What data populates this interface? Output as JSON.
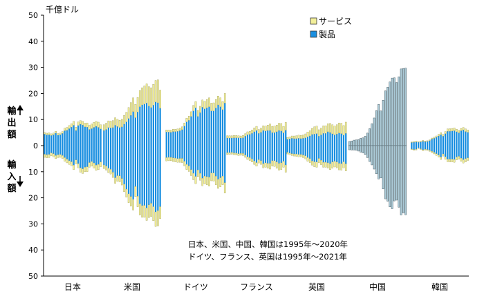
{
  "chart_data": {
    "type": "bar",
    "unit_label": "千億ドル",
    "y_ticks": [
      "50",
      "40",
      "30",
      "20",
      "10",
      "0",
      "10",
      "20",
      "30",
      "40",
      "50"
    ],
    "ylim": [
      -50,
      50
    ],
    "export_label": "輸出額",
    "import_label": "輸入額",
    "legend": {
      "services": "サービス",
      "goods": "製品"
    },
    "legend_position": "top-right",
    "grid": false,
    "note_lines": [
      "日本、米国、中国、韓国は1995年～2020年",
      "ドイツ、フランス、英国は1995年～2021年"
    ],
    "colors": {
      "goods": "#1a8fe0",
      "services": "#f2ef9a",
      "china": "#a9c9d6"
    },
    "countries": [
      {
        "name": "日本",
        "years": "1995-2020",
        "style": "split",
        "exp_goods": [
          4.4,
          4.1,
          4.2,
          3.9,
          4.2,
          4.8,
          4.0,
          4.2,
          4.7,
          5.7,
          5.9,
          6.5,
          7.1,
          7.8,
          5.8,
          7.7,
          8.2,
          7.9,
          7.2,
          7.1,
          6.2,
          6.5,
          7.0,
          7.4,
          7.0,
          6.4
        ],
        "exp_serv": [
          0.65,
          0.68,
          0.7,
          0.62,
          0.6,
          0.69,
          0.64,
          0.65,
          0.71,
          0.97,
          1.1,
          1.2,
          1.3,
          1.5,
          1.3,
          1.4,
          1.4,
          1.4,
          1.4,
          1.6,
          1.6,
          1.8,
          1.9,
          1.9,
          2.0,
          1.6
        ],
        "imp_goods": [
          3.3,
          3.5,
          3.4,
          2.8,
          3.1,
          3.8,
          3.5,
          3.4,
          3.8,
          4.6,
          5.2,
          5.8,
          6.2,
          7.5,
          5.5,
          6.9,
          8.5,
          8.9,
          8.3,
          8.1,
          6.5,
          6.1,
          6.7,
          7.5,
          7.2,
          6.3
        ],
        "imp_serv": [
          1.2,
          1.2,
          1.2,
          1.1,
          1.2,
          1.2,
          1.1,
          1.1,
          1.1,
          1.4,
          1.4,
          1.4,
          1.5,
          1.7,
          1.5,
          1.6,
          1.7,
          1.8,
          1.7,
          1.9,
          1.8,
          1.8,
          1.9,
          2.0,
          2.0,
          1.8
        ]
      },
      {
        "name": "米国",
        "years": "1995-2020",
        "style": "split",
        "exp_goods": [
          5.8,
          6.2,
          6.9,
          6.8,
          6.9,
          7.8,
          7.3,
          6.9,
          7.2,
          8.2,
          9.1,
          10.4,
          11.6,
          13.0,
          10.7,
          12.9,
          14.9,
          15.6,
          15.9,
          16.3,
          15.1,
          14.6,
          15.5,
          16.7,
          16.4,
          14.3
        ],
        "exp_serv": [
          2.2,
          2.4,
          2.6,
          2.6,
          2.7,
          2.9,
          2.8,
          2.8,
          2.9,
          3.4,
          3.7,
          4.2,
          4.9,
          5.3,
          5.1,
          5.6,
          6.2,
          6.6,
          7.0,
          7.4,
          7.5,
          7.6,
          8.0,
          8.3,
          8.8,
          7.0
        ],
        "imp_goods": [
          7.4,
          7.9,
          8.7,
          9.1,
          10.2,
          12.3,
          11.5,
          11.6,
          12.6,
          14.8,
          16.7,
          18.5,
          19.5,
          20.6,
          15.7,
          19.4,
          22.3,
          23.0,
          22.9,
          23.9,
          22.7,
          22.1,
          23.4,
          25.4,
          24.9,
          23.4
        ],
        "imp_serv": [
          1.4,
          1.5,
          1.7,
          1.8,
          2.0,
          2.2,
          2.2,
          2.3,
          2.5,
          2.9,
          3.1,
          3.4,
          3.7,
          4.1,
          3.8,
          4.1,
          4.3,
          4.5,
          4.6,
          4.8,
          4.9,
          5.1,
          5.4,
          5.6,
          5.9,
          4.6
        ]
      },
      {
        "name": "ドイツ",
        "years": "1995-2021",
        "style": "split",
        "exp_goods": [
          5.2,
          5.2,
          5.1,
          5.4,
          5.4,
          5.5,
          5.7,
          6.1,
          7.5,
          9.1,
          9.7,
          11.2,
          13.3,
          14.5,
          11.2,
          12.6,
          14.7,
          14.1,
          14.5,
          14.9,
          13.3,
          13.3,
          14.4,
          15.6,
          14.9,
          13.8,
          16.3
        ],
        "exp_serv": [
          0.8,
          0.8,
          0.8,
          0.9,
          0.9,
          0.9,
          1.0,
          1.1,
          1.2,
          1.4,
          1.6,
          1.8,
          2.1,
          2.4,
          2.3,
          2.5,
          2.8,
          2.9,
          3.2,
          3.4,
          3.0,
          3.1,
          3.3,
          3.4,
          3.4,
          3.1,
          3.7
        ],
        "imp_goods": [
          4.6,
          4.5,
          4.5,
          4.7,
          4.8,
          5.0,
          4.9,
          4.9,
          6.0,
          7.2,
          7.8,
          9.2,
          10.6,
          11.8,
          9.3,
          10.6,
          12.5,
          11.7,
          11.9,
          12.1,
          10.5,
          10.5,
          11.7,
          12.9,
          12.3,
          11.7,
          14.2
        ],
        "imp_serv": [
          1.3,
          1.3,
          1.3,
          1.4,
          1.5,
          1.4,
          1.5,
          1.6,
          1.8,
          2.0,
          2.1,
          2.3,
          2.5,
          2.8,
          2.6,
          2.7,
          2.9,
          3.0,
          3.1,
          3.4,
          3.0,
          3.1,
          3.3,
          3.5,
          3.5,
          3.3,
          4.0
        ]
      },
      {
        "name": "フランス",
        "years": "1995-2021",
        "style": "split",
        "exp_goods": [
          2.9,
          2.9,
          2.9,
          3.0,
          3.0,
          3.0,
          2.9,
          3.0,
          3.6,
          4.2,
          4.3,
          4.7,
          5.3,
          5.8,
          4.7,
          5.1,
          5.8,
          5.6,
          5.8,
          5.8,
          5.0,
          5.0,
          5.3,
          5.8,
          5.6,
          4.9,
          5.9
        ],
        "exp_serv": [
          0.9,
          0.9,
          0.9,
          0.9,
          0.9,
          0.8,
          0.8,
          0.9,
          1.0,
          1.1,
          1.2,
          1.3,
          1.5,
          1.6,
          1.5,
          1.6,
          1.8,
          1.9,
          2.1,
          2.5,
          2.4,
          2.5,
          2.6,
          2.8,
          2.9,
          2.5,
          3.0
        ],
        "imp_goods": [
          2.7,
          2.7,
          2.6,
          2.8,
          2.9,
          3.1,
          3.0,
          3.0,
          3.6,
          4.3,
          4.6,
          5.1,
          5.9,
          6.5,
          5.4,
          5.8,
          6.9,
          6.6,
          6.8,
          6.8,
          5.8,
          5.8,
          6.3,
          6.8,
          6.6,
          6.0,
          7.4
        ],
        "imp_serv": [
          0.7,
          0.7,
          0.7,
          0.7,
          0.7,
          0.7,
          0.7,
          0.8,
          0.9,
          1.0,
          1.1,
          1.2,
          1.3,
          1.4,
          1.3,
          1.4,
          1.6,
          1.7,
          1.9,
          2.2,
          2.1,
          2.2,
          2.4,
          2.6,
          2.6,
          2.3,
          2.8
        ]
      },
      {
        "name": "英国",
        "years": "1995-2021",
        "style": "split",
        "exp_goods": [
          2.4,
          2.6,
          2.8,
          2.7,
          2.7,
          2.8,
          2.7,
          2.8,
          3.0,
          3.4,
          3.7,
          4.3,
          4.4,
          4.6,
          3.6,
          4.1,
          4.7,
          4.7,
          5.3,
          5.0,
          4.5,
          4.1,
          4.4,
          4.8,
          4.6,
          4.0,
          4.7
        ],
        "exp_serv": [
          0.7,
          0.8,
          0.9,
          1.0,
          1.1,
          1.2,
          1.2,
          1.3,
          1.5,
          1.8,
          2.0,
          2.3,
          2.8,
          2.9,
          2.5,
          2.6,
          2.9,
          2.9,
          3.1,
          3.5,
          3.5,
          3.4,
          3.6,
          3.9,
          4.0,
          3.7,
          4.3
        ],
        "imp_goods": [
          2.6,
          2.9,
          3.1,
          3.2,
          3.2,
          3.4,
          3.4,
          3.6,
          3.9,
          4.6,
          5.0,
          5.9,
          6.2,
          6.3,
          4.9,
          5.6,
          6.4,
          6.4,
          6.6,
          6.9,
          6.3,
          6.0,
          6.3,
          6.8,
          6.9,
          6.2,
          7.0
        ],
        "imp_serv": [
          0.6,
          0.6,
          0.7,
          0.8,
          0.9,
          0.9,
          0.9,
          1.0,
          1.2,
          1.4,
          1.5,
          1.6,
          1.9,
          2.0,
          1.7,
          1.7,
          1.9,
          1.9,
          2.0,
          2.3,
          2.4,
          2.2,
          2.2,
          2.5,
          2.5,
          2.3,
          2.7
        ]
      },
      {
        "name": "中国",
        "years": "1995-2020",
        "style": "total",
        "exp_total": [
          1.6,
          1.8,
          2.1,
          2.2,
          2.3,
          2.8,
          3.0,
          3.6,
          4.8,
          6.5,
          8.4,
          10.6,
          13.4,
          15.8,
          13.3,
          17.4,
          21.0,
          22.4,
          24.4,
          25.9,
          26.0,
          24.2,
          26.4,
          29.4,
          29.6,
          29.7
        ],
        "imp_total": [
          1.6,
          1.7,
          1.7,
          1.8,
          2.1,
          2.5,
          2.8,
          3.4,
          4.6,
          6.1,
          7.4,
          9.0,
          10.8,
          12.8,
          12.4,
          16.6,
          20.4,
          21.3,
          23.5,
          24.2,
          21.2,
          20.9,
          23.6,
          26.6,
          25.8,
          26.5
        ]
      },
      {
        "name": "韓国",
        "years": "1995-2020",
        "style": "split",
        "exp_goods": [
          1.2,
          1.3,
          1.4,
          1.3,
          1.4,
          1.7,
          1.5,
          1.6,
          1.9,
          2.5,
          2.8,
          3.2,
          3.7,
          4.2,
          3.6,
          4.6,
          5.5,
          5.5,
          5.6,
          5.7,
          5.3,
          4.9,
          5.7,
          6.0,
          5.4,
          5.1
        ],
        "exp_serv": [
          0.22,
          0.26,
          0.27,
          0.25,
          0.26,
          0.31,
          0.3,
          0.28,
          0.32,
          0.41,
          0.46,
          0.51,
          0.66,
          0.79,
          0.69,
          0.81,
          0.9,
          1.0,
          1.0,
          1.1,
          0.97,
          0.94,
          0.89,
          0.99,
          1.0,
          0.9
        ],
        "imp_goods": [
          1.3,
          1.5,
          1.4,
          0.9,
          1.2,
          1.6,
          1.4,
          1.5,
          1.8,
          2.2,
          2.6,
          3.1,
          3.6,
          4.4,
          3.2,
          4.3,
          5.2,
          5.2,
          5.2,
          5.3,
          4.4,
          4.1,
          4.8,
          5.4,
          5.0,
          4.7
        ],
        "imp_serv": [
          0.25,
          0.3,
          0.31,
          0.24,
          0.28,
          0.33,
          0.33,
          0.36,
          0.4,
          0.5,
          0.58,
          0.69,
          0.85,
          0.92,
          0.8,
          0.97,
          1.0,
          1.1,
          1.1,
          1.1,
          1.1,
          1.1,
          1.2,
          1.3,
          1.3,
          1.0
        ]
      }
    ]
  }
}
